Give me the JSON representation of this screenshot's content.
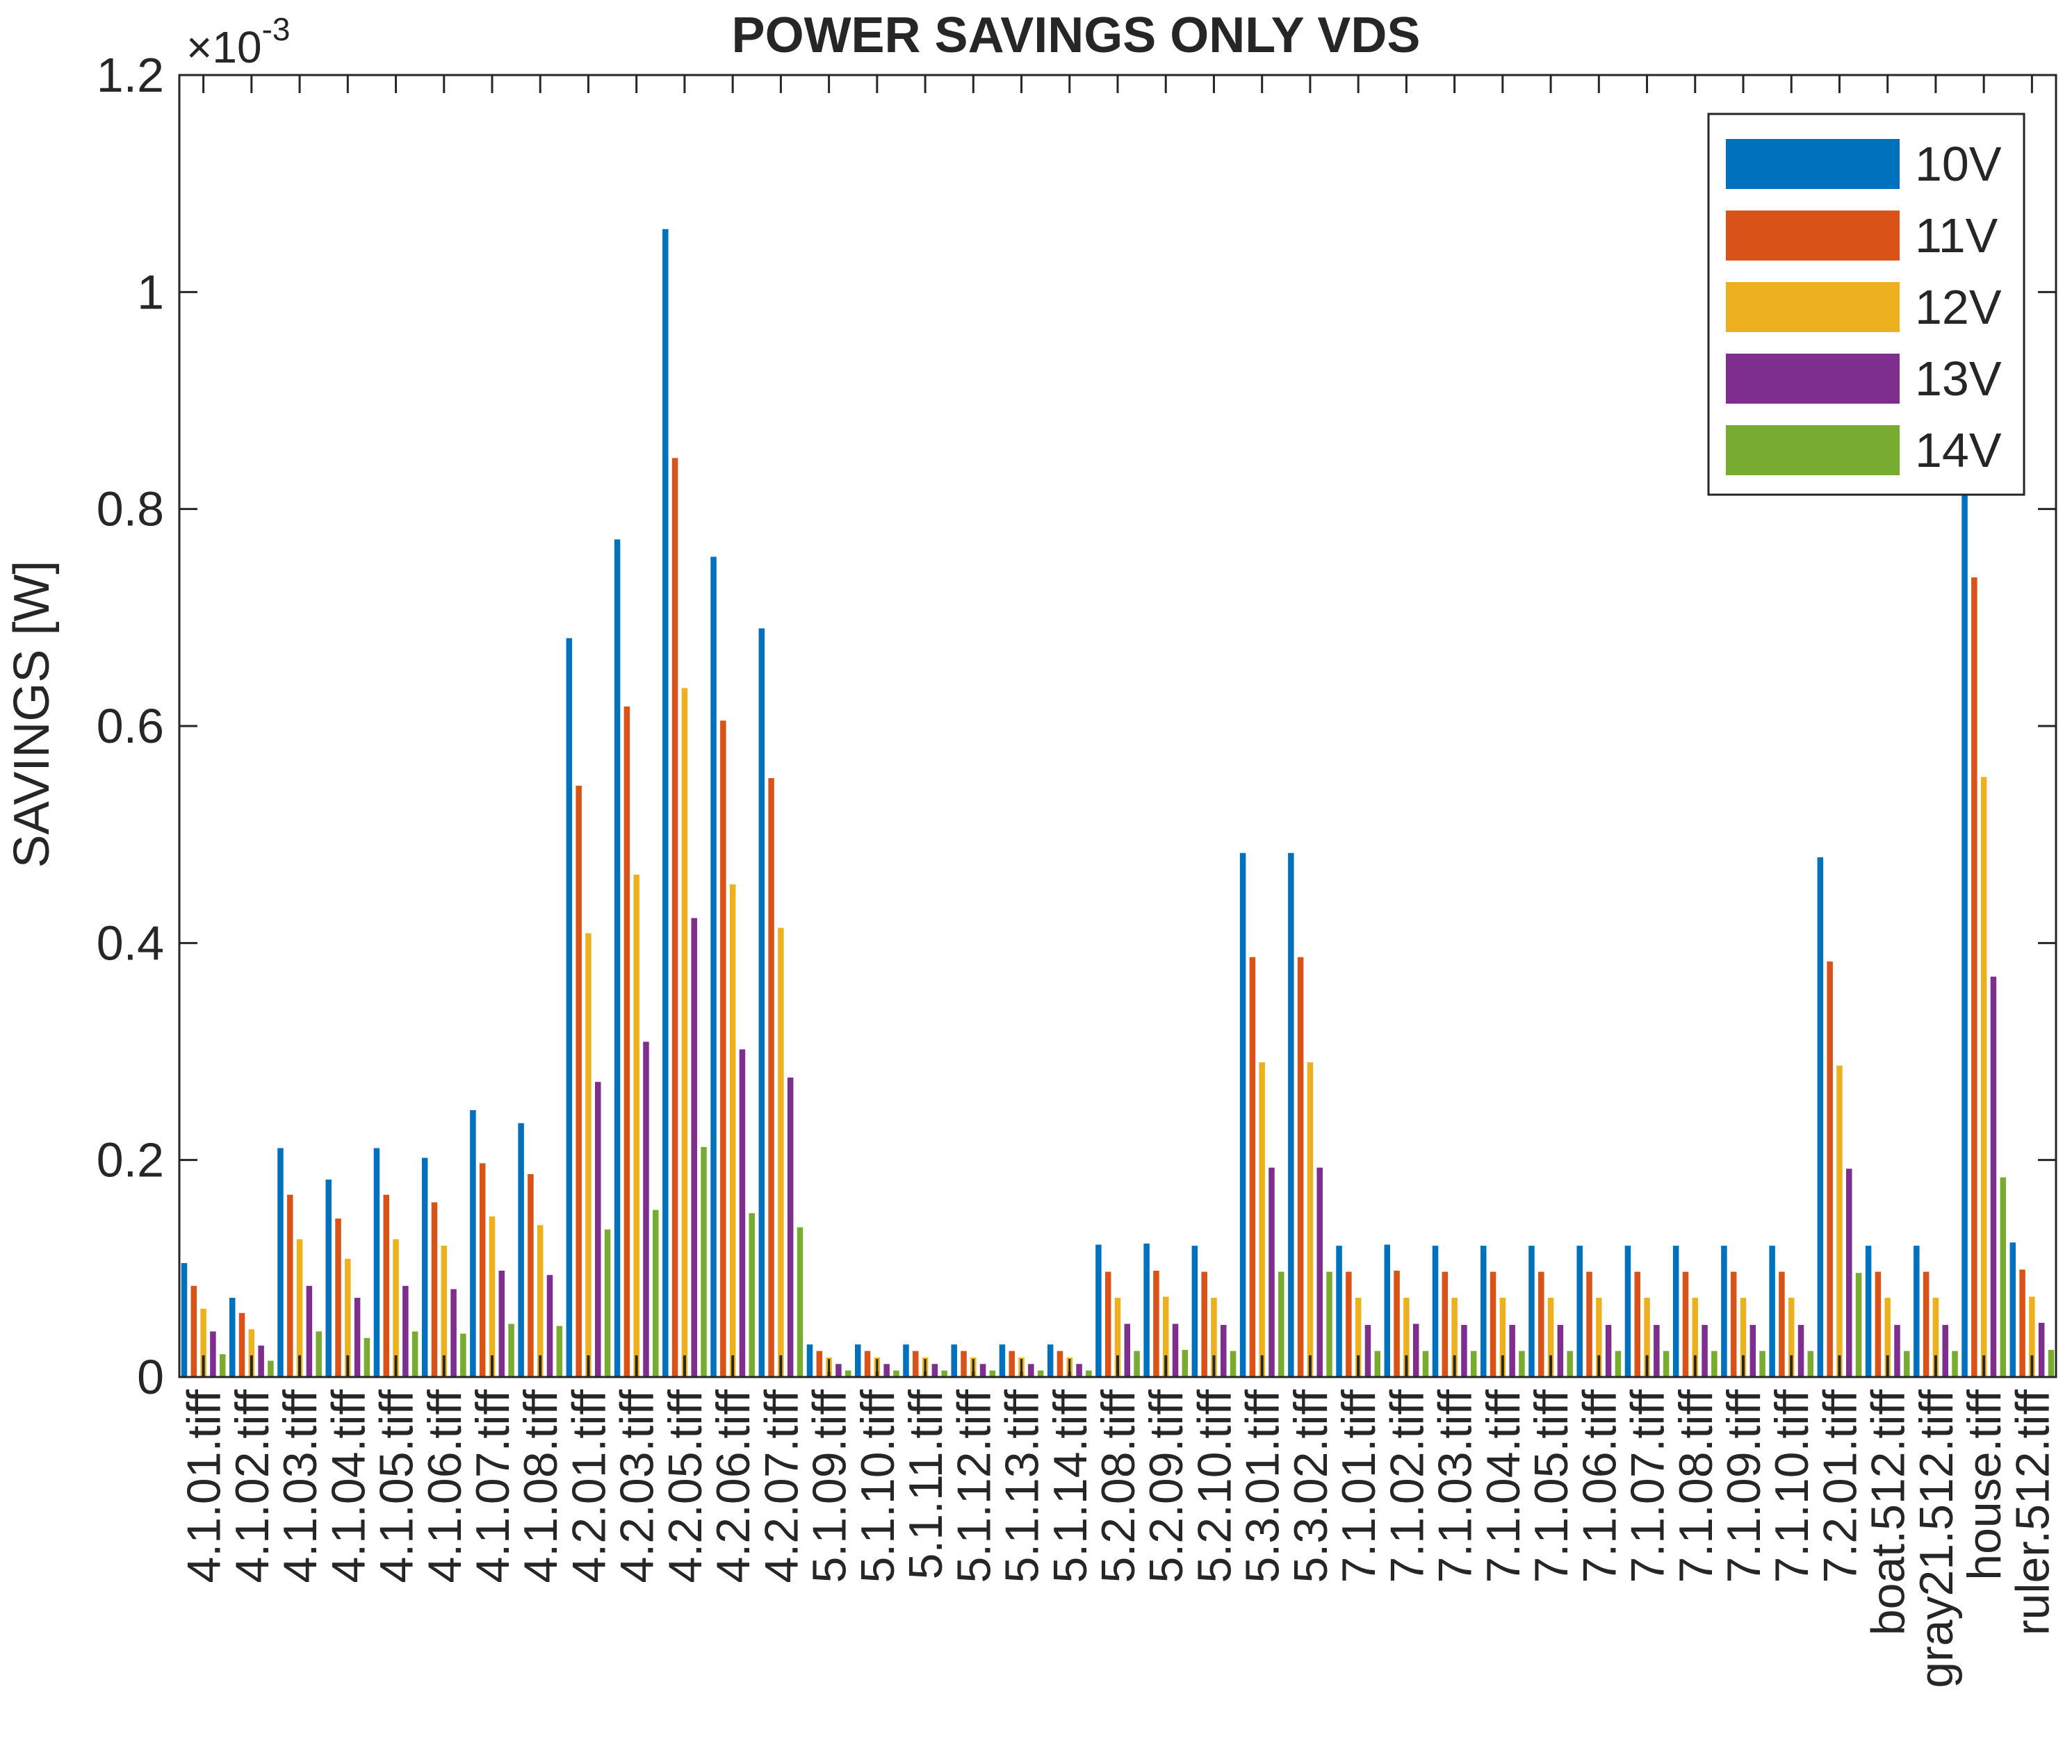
{
  "chart_data": {
    "type": "bar",
    "title": "POWER SAVINGS ONLY VDS",
    "ylabel": "SAVINGS  [W]",
    "xlabel": "",
    "y_exponent_label": "×10",
    "y_exponent_power": "-3",
    "ylim": [
      0,
      1.2
    ],
    "yticks": [
      0,
      0.2,
      0.4,
      0.6,
      0.8,
      1,
      1.2
    ],
    "ytick_labels": [
      "0",
      "0.2",
      "0.4",
      "0.6",
      "0.8",
      "1",
      "1.2"
    ],
    "grid": false,
    "legend_position": "top-right",
    "colors": [
      "#0072BD",
      "#D95319",
      "#EDB120",
      "#7E2F8E",
      "#77AC30"
    ],
    "marker_color": "#262626",
    "categories": [
      "4.1.01.tiff",
      "4.1.02.tiff",
      "4.1.03.tiff",
      "4.1.04.tiff",
      "4.1.05.tiff",
      "4.1.06.tiff",
      "4.1.07.tiff",
      "4.1.08.tiff",
      "4.2.01.tiff",
      "4.2.03.tiff",
      "4.2.05.tiff",
      "4.2.06.tiff",
      "4.2.07.tiff",
      "5.1.09.tiff",
      "5.1.10.tiff",
      "5.1.11.tiff",
      "5.1.12.tiff",
      "5.1.13.tiff",
      "5.1.14.tiff",
      "5.2.08.tiff",
      "5.2.09.tiff",
      "5.2.10.tiff",
      "5.3.01.tiff",
      "5.3.02.tiff",
      "7.1.01.tiff",
      "7.1.02.tiff",
      "7.1.03.tiff",
      "7.1.04.tiff",
      "7.1.05.tiff",
      "7.1.06.tiff",
      "7.1.07.tiff",
      "7.1.08.tiff",
      "7.1.09.tiff",
      "7.1.10.tiff",
      "7.2.01.tiff",
      "boat.512.tiff",
      "gray21.512.tiff",
      "house.tiff",
      "ruler.512.tiff"
    ],
    "series": [
      {
        "name": "10V",
        "values": [
          0.105,
          0.073,
          0.211,
          0.182,
          0.211,
          0.202,
          0.246,
          0.234,
          0.681,
          0.772,
          1.058,
          0.756,
          0.69,
          0.03,
          0.03,
          0.03,
          0.03,
          0.03,
          0.03,
          0.122,
          0.123,
          0.121,
          0.483,
          0.483,
          0.121,
          0.122,
          0.121,
          0.121,
          0.121,
          0.121,
          0.121,
          0.121,
          0.121,
          0.121,
          0.479,
          0.121,
          0.121,
          0.922,
          0.124
        ]
      },
      {
        "name": "11V",
        "values": [
          0.084,
          0.059,
          0.168,
          0.146,
          0.168,
          0.161,
          0.197,
          0.187,
          0.545,
          0.618,
          0.847,
          0.605,
          0.552,
          0.024,
          0.024,
          0.024,
          0.024,
          0.024,
          0.024,
          0.097,
          0.098,
          0.097,
          0.387,
          0.387,
          0.097,
          0.098,
          0.097,
          0.097,
          0.097,
          0.097,
          0.097,
          0.097,
          0.097,
          0.097,
          0.383,
          0.097,
          0.097,
          0.737,
          0.099
        ]
      },
      {
        "name": "12V",
        "values": [
          0.063,
          0.044,
          0.127,
          0.109,
          0.127,
          0.121,
          0.148,
          0.14,
          0.409,
          0.463,
          0.635,
          0.454,
          0.414,
          0.018,
          0.018,
          0.018,
          0.018,
          0.018,
          0.018,
          0.073,
          0.074,
          0.073,
          0.29,
          0.29,
          0.073,
          0.073,
          0.073,
          0.073,
          0.073,
          0.073,
          0.073,
          0.073,
          0.073,
          0.073,
          0.287,
          0.073,
          0.073,
          0.553,
          0.074
        ]
      },
      {
        "name": "13V",
        "values": [
          0.042,
          0.029,
          0.084,
          0.073,
          0.084,
          0.081,
          0.098,
          0.094,
          0.272,
          0.309,
          0.423,
          0.302,
          0.276,
          0.012,
          0.012,
          0.012,
          0.012,
          0.012,
          0.012,
          0.049,
          0.049,
          0.048,
          0.193,
          0.193,
          0.048,
          0.049,
          0.048,
          0.048,
          0.048,
          0.048,
          0.048,
          0.048,
          0.048,
          0.048,
          0.192,
          0.048,
          0.048,
          0.369,
          0.05
        ]
      },
      {
        "name": "14V",
        "values": [
          0.021,
          0.015,
          0.042,
          0.036,
          0.042,
          0.04,
          0.049,
          0.047,
          0.136,
          0.154,
          0.212,
          0.151,
          0.138,
          0.006,
          0.006,
          0.006,
          0.006,
          0.006,
          0.006,
          0.024,
          0.025,
          0.024,
          0.097,
          0.097,
          0.024,
          0.024,
          0.024,
          0.024,
          0.024,
          0.024,
          0.024,
          0.024,
          0.024,
          0.024,
          0.096,
          0.024,
          0.024,
          0.184,
          0.025
        ]
      }
    ],
    "marker_values": [
      0.02,
      0.02,
      0.02,
      0.02,
      0.02,
      0.02,
      0.02,
      0.02,
      0.02,
      0.02,
      0.02,
      0.02,
      0.02,
      0.005,
      0.005,
      0.005,
      0.005,
      0.005,
      0.005,
      0.02,
      0.02,
      0.02,
      0.02,
      0.02,
      0.02,
      0.02,
      0.02,
      0.02,
      0.02,
      0.02,
      0.02,
      0.02,
      0.02,
      0.02,
      0.02,
      0.02,
      0.02,
      0.02,
      0.02
    ]
  }
}
